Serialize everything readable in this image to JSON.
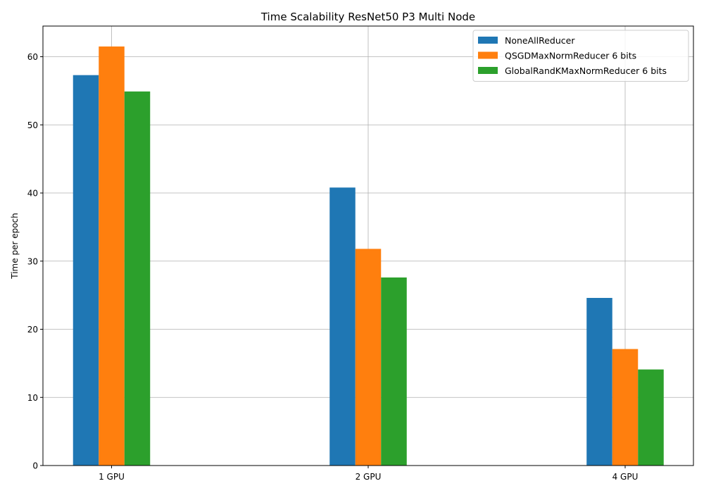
{
  "chart_data": {
    "type": "bar",
    "title": "Time Scalability ResNet50 P3 Multi Node",
    "xlabel": "",
    "ylabel": "Time per epoch",
    "categories": [
      "1 GPU",
      "2 GPU",
      "4 GPU"
    ],
    "series": [
      {
        "name": "NoneAllReducer",
        "values": [
          57.3,
          40.8,
          24.6
        ],
        "color": "#1f77b4"
      },
      {
        "name": "QSGDMaxNormReducer 6 bits",
        "values": [
          61.5,
          31.8,
          17.1
        ],
        "color": "#ff7f0e"
      },
      {
        "name": "GlobalRandKMaxNormReducer 6 bits",
        "values": [
          54.9,
          27.6,
          14.1
        ],
        "color": "#2ca02c"
      }
    ],
    "ylim": [
      0,
      64.5
    ],
    "yticks": [
      0,
      10,
      20,
      30,
      40,
      50,
      60
    ],
    "grid": true,
    "legend_position": "top-right"
  }
}
